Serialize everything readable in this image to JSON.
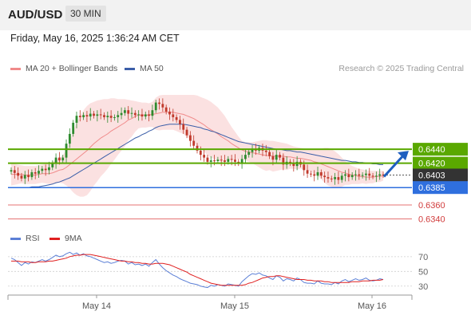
{
  "header": {
    "pair": "AUD/USD",
    "timeframe": "30 MIN"
  },
  "datetime": "Friday, May 16, 2025 1:36:24 AM CET",
  "legend": {
    "items": [
      {
        "label": "MA 20 + Bollinger Bands",
        "color": "#f08a8a"
      },
      {
        "label": "MA 50",
        "color": "#3b5ea8"
      }
    ],
    "credit": "Research © 2025 Trading Central"
  },
  "rsi_legend": {
    "items": [
      {
        "label": "RSI",
        "color": "#5b7fd6"
      },
      {
        "label": "9MA",
        "color": "#e02020"
      }
    ]
  },
  "colors": {
    "up": "#2e8b2e",
    "down": "#c0392b",
    "resistance": "#5aa800",
    "support": "#2f6fde",
    "target": "#e57373",
    "current": "#333333",
    "arrow": "#1f5fbf"
  },
  "chart_data": [
    {
      "type": "candlestick",
      "ylim": [
        0.6328,
        0.6542
      ],
      "x_ticks": [
        "May 14",
        "May 15",
        "May 16"
      ],
      "levels": [
        {
          "label": "0.6440",
          "value": 0.644,
          "kind": "resistance"
        },
        {
          "label": "0.6420",
          "value": 0.642,
          "kind": "resistance"
        },
        {
          "label": "0.6403",
          "value": 0.6403,
          "kind": "current"
        },
        {
          "label": "0.6385",
          "value": 0.6385,
          "kind": "support"
        },
        {
          "label": "0.6360",
          "value": 0.636,
          "kind": "target"
        },
        {
          "label": "0.6340",
          "value": 0.634,
          "kind": "target"
        }
      ],
      "close": [
        0.641,
        0.6406,
        0.6402,
        0.6398,
        0.6403,
        0.64,
        0.6407,
        0.6405,
        0.6409,
        0.6412,
        0.641,
        0.6414,
        0.642,
        0.6428,
        0.6424,
        0.6428,
        0.6448,
        0.6462,
        0.6478,
        0.6488,
        0.6486,
        0.6489,
        0.6487,
        0.6491,
        0.6488,
        0.649,
        0.6489,
        0.6486,
        0.6488,
        0.6485,
        0.6486,
        0.6489,
        0.6492,
        0.6496,
        0.6491,
        0.6492,
        0.6489,
        0.649,
        0.6487,
        0.649,
        0.6488,
        0.6496,
        0.6507,
        0.6505,
        0.65,
        0.6494,
        0.649,
        0.6486,
        0.6482,
        0.6476,
        0.6468,
        0.646,
        0.6452,
        0.6445,
        0.6438,
        0.6432,
        0.6428,
        0.6422,
        0.6424,
        0.6423,
        0.6425,
        0.6424,
        0.6422,
        0.6426,
        0.6425,
        0.6422,
        0.642,
        0.6426,
        0.6432,
        0.6436,
        0.644,
        0.6438,
        0.6442,
        0.6438,
        0.6436,
        0.643,
        0.6425,
        0.6432,
        0.6428,
        0.6418,
        0.6422,
        0.642,
        0.6416,
        0.6422,
        0.6418,
        0.641,
        0.6405,
        0.6404,
        0.6402,
        0.6407,
        0.6402,
        0.64,
        0.6398,
        0.6397,
        0.64,
        0.6396,
        0.6402,
        0.6404,
        0.64,
        0.6403,
        0.6404,
        0.6402,
        0.6403,
        0.6405,
        0.6402,
        0.6401,
        0.6402,
        0.6404,
        0.6403
      ],
      "ma20": [
        0.6404,
        0.6404,
        0.6404,
        0.6404,
        0.6403,
        0.6403,
        0.6403,
        0.6403,
        0.6404,
        0.6405,
        0.6405,
        0.6405,
        0.6406,
        0.6408,
        0.641,
        0.6411,
        0.6414,
        0.6418,
        0.6422,
        0.6426,
        0.643,
        0.6434,
        0.6438,
        0.6443,
        0.6448,
        0.6452,
        0.6456,
        0.6459,
        0.6462,
        0.6466,
        0.6469,
        0.6472,
        0.6475,
        0.6478,
        0.6482,
        0.6484,
        0.6487,
        0.6489,
        0.6489,
        0.6489,
        0.6489,
        0.649,
        0.6491,
        0.6492,
        0.6493,
        0.6493,
        0.6493,
        0.6493,
        0.6492,
        0.6491,
        0.649,
        0.6488,
        0.6486,
        0.6484,
        0.6481,
        0.6478,
        0.6475,
        0.6471,
        0.6468,
        0.6465,
        0.6462,
        0.6458,
        0.6455,
        0.6452,
        0.6448,
        0.6445,
        0.6442,
        0.6439,
        0.6437,
        0.6436,
        0.6435,
        0.6434,
        0.6433,
        0.6432,
        0.6431,
        0.6431,
        0.643,
        0.643,
        0.643,
        0.643,
        0.6429,
        0.6429,
        0.6428,
        0.6427,
        0.6427,
        0.6426,
        0.6425,
        0.6424,
        0.6422,
        0.6421,
        0.6419,
        0.6417,
        0.6415,
        0.6413,
        0.6411,
        0.6409,
        0.6407,
        0.6406,
        0.6404,
        0.6403,
        0.6402,
        0.6401,
        0.6401,
        0.64,
        0.64,
        0.64,
        0.6401,
        0.6401,
        0.6402
      ],
      "bb_upper": [
        0.642,
        0.6419,
        0.6418,
        0.6417,
        0.6416,
        0.6416,
        0.6416,
        0.6416,
        0.6417,
        0.6418,
        0.6419,
        0.642,
        0.6422,
        0.6425,
        0.6428,
        0.6431,
        0.644,
        0.6452,
        0.6466,
        0.6478,
        0.6488,
        0.6496,
        0.6502,
        0.6506,
        0.6508,
        0.651,
        0.6511,
        0.6512,
        0.6512,
        0.6513,
        0.6513,
        0.6512,
        0.6512,
        0.6512,
        0.6511,
        0.651,
        0.6509,
        0.6508,
        0.6507,
        0.6507,
        0.6506,
        0.6508,
        0.6514,
        0.6517,
        0.6518,
        0.6518,
        0.6518,
        0.6518,
        0.6518,
        0.6518,
        0.6518,
        0.6518,
        0.6518,
        0.6518,
        0.6517,
        0.6515,
        0.6513,
        0.6511,
        0.6508,
        0.6504,
        0.65,
        0.6494,
        0.6488,
        0.648,
        0.6472,
        0.6465,
        0.6458,
        0.6452,
        0.645,
        0.645,
        0.645,
        0.6451,
        0.6452,
        0.6453,
        0.6453,
        0.6452,
        0.6452,
        0.6451,
        0.645,
        0.6449,
        0.6448,
        0.6446,
        0.6444,
        0.6443,
        0.6442,
        0.6441,
        0.644,
        0.644,
        0.644,
        0.644,
        0.6441,
        0.6442,
        0.6442,
        0.644,
        0.6437,
        0.6433,
        0.6428,
        0.6423,
        0.6419,
        0.6416,
        0.6414,
        0.6412,
        0.6411,
        0.641,
        0.6409,
        0.6409,
        0.6409,
        0.6409,
        0.6409
      ],
      "bb_lower": [
        0.6388,
        0.6389,
        0.639,
        0.6391,
        0.639,
        0.639,
        0.639,
        0.639,
        0.6391,
        0.6392,
        0.6391,
        0.639,
        0.639,
        0.6391,
        0.6392,
        0.6391,
        0.6388,
        0.6384,
        0.6378,
        0.6374,
        0.6372,
        0.6372,
        0.6374,
        0.638,
        0.6388,
        0.6394,
        0.6401,
        0.6406,
        0.6412,
        0.6419,
        0.6425,
        0.6432,
        0.6438,
        0.6444,
        0.6453,
        0.6458,
        0.6465,
        0.647,
        0.6471,
        0.6471,
        0.6472,
        0.6472,
        0.6468,
        0.6467,
        0.6468,
        0.6468,
        0.6468,
        0.6468,
        0.6466,
        0.6464,
        0.6462,
        0.6458,
        0.6454,
        0.645,
        0.6445,
        0.6441,
        0.6437,
        0.6431,
        0.6428,
        0.6426,
        0.6424,
        0.6422,
        0.6422,
        0.6424,
        0.6424,
        0.6425,
        0.6426,
        0.6426,
        0.6424,
        0.6422,
        0.642,
        0.6417,
        0.6414,
        0.6411,
        0.6409,
        0.641,
        0.6408,
        0.6409,
        0.641,
        0.6411,
        0.641,
        0.6412,
        0.6412,
        0.6411,
        0.6412,
        0.6411,
        0.641,
        0.6408,
        0.6404,
        0.6402,
        0.6397,
        0.6392,
        0.6388,
        0.6386,
        0.6385,
        0.6385,
        0.6386,
        0.6389,
        0.6389,
        0.639,
        0.639,
        0.639,
        0.6391,
        0.639,
        0.6391,
        0.6391,
        0.6393,
        0.6393,
        0.6395
      ],
      "ma50": [
        0.6385,
        0.6385,
        0.6385,
        0.6385,
        0.6385,
        0.6385,
        0.6386,
        0.6386,
        0.6386,
        0.6387,
        0.6388,
        0.6389,
        0.639,
        0.6392,
        0.6393,
        0.6395,
        0.6397,
        0.6399,
        0.6402,
        0.6405,
        0.6408,
        0.6411,
        0.6414,
        0.6417,
        0.642,
        0.6423,
        0.6426,
        0.6429,
        0.6432,
        0.6435,
        0.6438,
        0.6441,
        0.6444,
        0.6447,
        0.645,
        0.6453,
        0.6456,
        0.6458,
        0.6461,
        0.6463,
        0.6466,
        0.6468,
        0.6471,
        0.6473,
        0.6474,
        0.6475,
        0.6476,
        0.6476,
        0.6476,
        0.6476,
        0.6476,
        0.6475,
        0.6474,
        0.6473,
        0.6472,
        0.6471,
        0.6469,
        0.6468,
        0.6466,
        0.6465,
        0.6463,
        0.6461,
        0.6459,
        0.6457,
        0.6455,
        0.6453,
        0.6451,
        0.645,
        0.6449,
        0.6448,
        0.6447,
        0.6446,
        0.6445,
        0.6444,
        0.6443,
        0.6442,
        0.6441,
        0.644,
        0.644,
        0.6439,
        0.6438,
        0.6438,
        0.6437,
        0.6436,
        0.6436,
        0.6435,
        0.6434,
        0.6433,
        0.6432,
        0.6431,
        0.643,
        0.6429,
        0.6428,
        0.6427,
        0.6426,
        0.6425,
        0.6424,
        0.6424,
        0.6423,
        0.6422,
        0.6422,
        0.6421,
        0.6421,
        0.642,
        0.642,
        0.6419,
        0.6419,
        0.6418,
        0.6418
      ],
      "forecast_arrow": {
        "from": 0.6403,
        "to": 0.644
      }
    },
    {
      "type": "line",
      "title": "RSI",
      "ylim": [
        20,
        85
      ],
      "y_ticks": [
        70,
        50,
        30
      ],
      "series": [
        {
          "name": "RSI",
          "values": [
            68,
            66,
            62,
            58,
            62,
            60,
            63,
            62,
            64,
            66,
            64,
            66,
            69,
            72,
            70,
            71,
            74,
            76,
            73,
            75,
            72,
            74,
            71,
            70,
            68,
            66,
            64,
            62,
            63,
            61,
            62,
            64,
            65,
            64,
            60,
            62,
            59,
            60,
            58,
            60,
            57,
            62,
            66,
            60,
            55,
            51,
            48,
            45,
            43,
            40,
            38,
            36,
            34,
            33,
            32,
            30,
            29,
            28,
            31,
            30,
            32,
            31,
            30,
            33,
            32,
            31,
            30,
            36,
            40,
            44,
            47,
            46,
            48,
            45,
            44,
            41,
            39,
            44,
            42,
            37,
            40,
            39,
            37,
            41,
            39,
            35,
            34,
            34,
            33,
            37,
            34,
            33,
            33,
            32,
            35,
            33,
            37,
            39,
            36,
            38,
            40,
            38,
            39,
            41,
            38,
            37,
            38,
            40,
            39
          ]
        },
        {
          "name": "9MA",
          "values": [
            64,
            64,
            64,
            63,
            63,
            63,
            62,
            62,
            63,
            63,
            63,
            64,
            64,
            65,
            66,
            67,
            68,
            70,
            71,
            72,
            72,
            73,
            73,
            73,
            72,
            71,
            70,
            69,
            68,
            67,
            66,
            65,
            64,
            64,
            63,
            63,
            62,
            62,
            61,
            61,
            60,
            60,
            61,
            61,
            61,
            60,
            59,
            57,
            55,
            53,
            51,
            49,
            46,
            44,
            42,
            40,
            38,
            36,
            34,
            33,
            32,
            31,
            31,
            31,
            31,
            31,
            31,
            31,
            32,
            34,
            35,
            37,
            39,
            41,
            42,
            43,
            43,
            44,
            44,
            43,
            42,
            41,
            40,
            39,
            39,
            39,
            38,
            38,
            37,
            37,
            37,
            36,
            36,
            35,
            35,
            35,
            35,
            35,
            35,
            36,
            36,
            36,
            37,
            37,
            37,
            38,
            38,
            38,
            39
          ]
        }
      ]
    }
  ]
}
